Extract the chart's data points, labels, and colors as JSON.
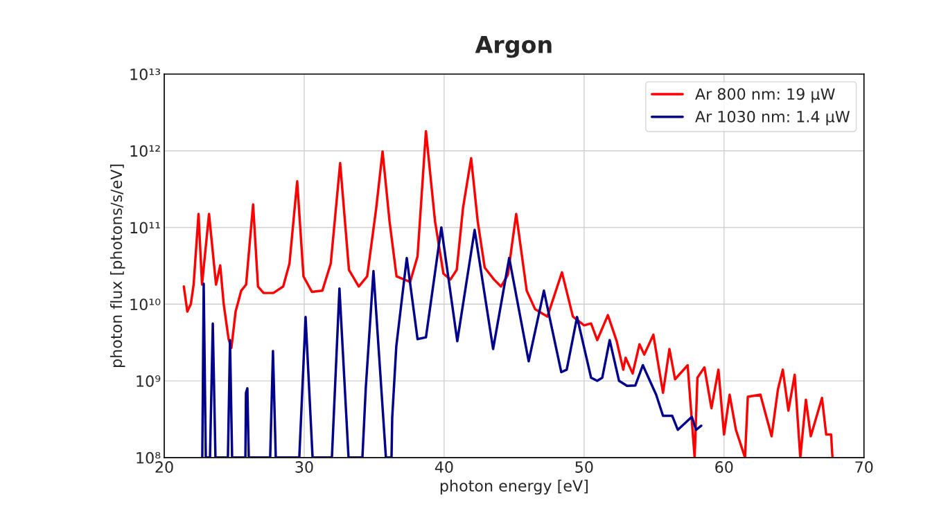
{
  "chart_data": {
    "type": "line",
    "title": "Argon",
    "xlabel": "photon energy [eV]",
    "ylabel": "photon flux [photons/s/eV]",
    "log": "y",
    "grid": true,
    "legend": "top right",
    "line_style": "solid",
    "marker": "none",
    "xlim": [
      20,
      70
    ],
    "xticks": [
      20,
      30,
      40,
      50,
      60,
      70
    ],
    "ylim": [
      100000000.0,
      10000000000000.0
    ],
    "yticks": [
      {
        "value": 100000000.0,
        "label": "10⁸"
      },
      {
        "value": 1000000000.0,
        "label": "10⁹"
      },
      {
        "value": 10000000000.0,
        "label": "10¹⁰"
      },
      {
        "value": 100000000000.0,
        "label": "10¹¹"
      },
      {
        "value": 1000000000000.0,
        "label": "10¹²"
      },
      {
        "value": 10000000000000.0,
        "label": "10¹³"
      }
    ],
    "series": [
      {
        "name": "Ar 800 nm: 19 µW",
        "color": "#ff0000",
        "x": [
          21.4,
          21.65,
          21.9,
          22.1,
          22.45,
          22.7,
          23.2,
          23.7,
          24.0,
          24.25,
          24.6,
          24.8,
          25.1,
          25.5,
          25.85,
          26.35,
          26.7,
          27.1,
          27.8,
          28.5,
          28.95,
          29.5,
          29.95,
          30.55,
          31.3,
          31.9,
          32.57,
          33.2,
          33.9,
          34.5,
          35.15,
          35.6,
          36.1,
          36.6,
          37.57,
          38.1,
          38.7,
          39.35,
          39.95,
          40.45,
          40.9,
          41.35,
          41.93,
          42.4,
          42.9,
          43.56,
          44.06,
          44.55,
          45.15,
          45.9,
          46.5,
          47.38,
          48.42,
          49.2,
          50.0,
          50.5,
          50.94,
          51.7,
          52.33,
          52.8,
          52.97,
          53.47,
          53.96,
          54.3,
          54.95,
          55.64,
          56.1,
          56.5,
          57.4,
          57.9,
          58.1,
          58.6,
          59.1,
          59.6,
          60.0,
          60.4,
          60.85,
          61.5,
          61.7,
          62.6,
          63.4,
          63.85,
          64.2,
          64.6,
          65.05,
          65.45,
          65.85,
          66.2,
          67.0,
          67.3,
          67.65,
          67.75
        ],
        "values": [
          17000000000.0,
          8000000000.0,
          10000000000.0,
          18000000000.0,
          150000000000.0,
          18000000000.0,
          150000000000.0,
          18000000000.0,
          32000000000.0,
          10000000000.0,
          3500000000.0,
          2700000000.0,
          8000000000.0,
          15000000000.0,
          18000000000.0,
          200000000000.0,
          17000000000.0,
          14000000000.0,
          14000000000.0,
          17000000000.0,
          34000000000.0,
          400000000000.0,
          23000000000.0,
          14500000000.0,
          15000000000.0,
          34000000000.0,
          690000000000.0,
          28000000000.0,
          17000000000.0,
          23000000000.0,
          180000000000.0,
          980000000000.0,
          120000000000.0,
          23000000000.0,
          19500000000.0,
          42000000000.0,
          1800000000000.0,
          120000000000.0,
          25000000000.0,
          21000000000.0,
          28000000000.0,
          180000000000.0,
          800000000000.0,
          120000000000.0,
          30000000000.0,
          21000000000.0,
          17000000000.0,
          24000000000.0,
          150000000000.0,
          15000000000.0,
          8600000000.0,
          6900000000.0,
          26000000000.0,
          6900000000.0,
          5300000000.0,
          5600000000.0,
          3400000000.0,
          7200000000.0,
          3300000000.0,
          1400000000.0,
          2000000000.0,
          1250000000.0,
          3000000000.0,
          2200000000.0,
          4000000000.0,
          700000000.0,
          2600000000.0,
          1050000000.0,
          1600000000.0,
          100000000.0,
          1100000000.0,
          1500000000.0,
          440000000.0,
          1400000000.0,
          200000000.0,
          660000000.0,
          230000000.0,
          100000000.0,
          620000000.0,
          660000000.0,
          190000000.0,
          770000000.0,
          1400000000.0,
          410000000.0,
          1200000000.0,
          100000000.0,
          570000000.0,
          190000000.0,
          600000000.0,
          200000000.0,
          200000000.0,
          100000000.0
        ]
      },
      {
        "name": "Ar 1030 nm: 1.4 µW",
        "color": "#00008b",
        "x": [
          22.72,
          22.82,
          22.97,
          23.27,
          23.47,
          23.66,
          24.55,
          24.7,
          24.85,
          25.8,
          25.84,
          25.94,
          26.04,
          27.57,
          27.77,
          27.97,
          29.65,
          30.1,
          30.6,
          31.98,
          32.52,
          33.17,
          34.16,
          34.4,
          34.95,
          35.84,
          36.24,
          36.29,
          36.58,
          37.33,
          38.1,
          38.7,
          39.8,
          40.94,
          42.18,
          43.5,
          44.65,
          46.04,
          47.13,
          48.37,
          48.76,
          49.5,
          50.5,
          50.94,
          51.3,
          51.83,
          52.5,
          53.07,
          53.66,
          54.2,
          55.15,
          55.64,
          56.3,
          56.7,
          57.7,
          58.0,
          58.37
        ],
        "values": [
          100000000.0,
          18500000000.0,
          100000000.0,
          100000000.0,
          5600000000.0,
          100000000.0,
          100000000.0,
          3400000000.0,
          100000000.0,
          100000000.0,
          700000000.0,
          800000000.0,
          100000000.0,
          100000000.0,
          2450000000.0,
          100000000.0,
          100000000.0,
          6800000000.0,
          100000000.0,
          100000000.0,
          16000000000.0,
          100000000.0,
          100000000.0,
          800000000.0,
          27000000000.0,
          100000000.0,
          100000000.0,
          330000000.0,
          2800000000.0,
          40000000000.0,
          3500000000.0,
          3700000000.0,
          100000000000.0,
          3300000000.0,
          93000000000.0,
          2600000000.0,
          40000000000.0,
          1800000000.0,
          15000000000.0,
          1300000000.0,
          1400000000.0,
          6800000000.0,
          1100000000.0,
          1000000000.0,
          1100000000.0,
          3400000000.0,
          1000000000.0,
          860000000.0,
          870000000.0,
          1600000000.0,
          660000000.0,
          350000000.0,
          350000000.0,
          230000000.0,
          340000000.0,
          230000000.0,
          260000000.0
        ]
      }
    ]
  }
}
